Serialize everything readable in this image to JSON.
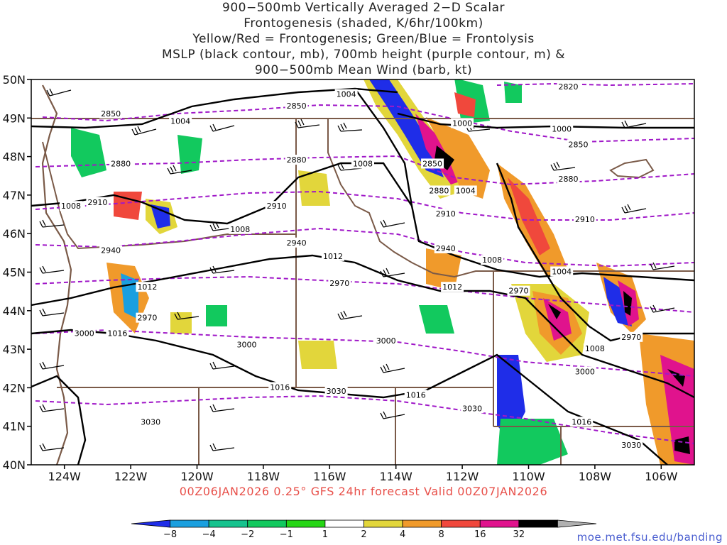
{
  "title_lines": [
    "900−500mb Vertically Averaged 2−D Scalar",
    "Frontogenesis (shaded, K/6hr/100km)",
    "Yellow/Red = Frontogenesis;  Green/Blue = Frontolysis",
    "MSLP (black contour, mb), 700mb height (purple contour, m) &",
    "900−500mb Mean Wind (barb, kt)"
  ],
  "footer": "00Z06JAN2026 0.25° GFS 24hr forecast Valid 00Z07JAN2026",
  "credit": "moe.met.fsu.edu/banding",
  "axes": {
    "lat_labels": [
      "50N",
      "49N",
      "48N",
      "47N",
      "46N",
      "45N",
      "44N",
      "43N",
      "42N",
      "41N",
      "40N"
    ],
    "lon_labels": [
      "124W",
      "122W",
      "120W",
      "118W",
      "116W",
      "114W",
      "112W",
      "110W",
      "108W",
      "106W"
    ]
  },
  "colorbar": {
    "labels": [
      "−8",
      "−4",
      "−2",
      "−1",
      "1",
      "2",
      "4",
      "8",
      "16",
      "32"
    ],
    "colors": [
      "#1f2de8",
      "#1a9fdf",
      "#16c38e",
      "#12c95e",
      "#26d615",
      "#ffffff",
      "#e2d63b",
      "#f09a2b",
      "#f0483c",
      "#e0138d",
      "#000000",
      "#b0b0b0"
    ]
  },
  "mslp_labels": [
    {
      "text": "1004",
      "lon": -115.5,
      "lat": 49.6
    },
    {
      "text": "1004",
      "lon": -120.5,
      "lat": 48.9
    },
    {
      "text": "1000",
      "lon": -112.0,
      "lat": 48.85
    },
    {
      "text": "1000",
      "lon": -109.0,
      "lat": 48.7
    },
    {
      "text": "1008",
      "lon": -115.0,
      "lat": 47.8
    },
    {
      "text": "1004",
      "lon": -111.9,
      "lat": 47.1
    },
    {
      "text": "1008",
      "lon": -123.8,
      "lat": 46.7
    },
    {
      "text": "1008",
      "lon": -118.7,
      "lat": 46.1
    },
    {
      "text": "1008",
      "lon": -111.1,
      "lat": 45.3
    },
    {
      "text": "1004",
      "lon": -109.0,
      "lat": 45.0
    },
    {
      "text": "1012",
      "lon": -115.9,
      "lat": 45.4
    },
    {
      "text": "1012",
      "lon": -112.3,
      "lat": 44.6
    },
    {
      "text": "1012",
      "lon": -121.5,
      "lat": 44.6
    },
    {
      "text": "1016",
      "lon": -122.4,
      "lat": 43.4
    },
    {
      "text": "1008",
      "lon": -108.0,
      "lat": 43.0
    },
    {
      "text": "1016",
      "lon": -117.5,
      "lat": 42.0
    },
    {
      "text": "1016",
      "lon": -113.4,
      "lat": 41.8
    },
    {
      "text": "1016",
      "lon": -108.4,
      "lat": 41.1
    }
  ],
  "height_labels": [
    {
      "text": "2820",
      "lon": -108.8,
      "lat": 49.8
    },
    {
      "text": "2850",
      "lon": -122.6,
      "lat": 49.1
    },
    {
      "text": "2850",
      "lon": -117.0,
      "lat": 49.3
    },
    {
      "text": "2850",
      "lon": -112.9,
      "lat": 47.8
    },
    {
      "text": "2850",
      "lon": -108.5,
      "lat": 48.3
    },
    {
      "text": "2880",
      "lon": -122.3,
      "lat": 47.8
    },
    {
      "text": "2880",
      "lon": -117.0,
      "lat": 47.9
    },
    {
      "text": "2880",
      "lon": -112.7,
      "lat": 47.1
    },
    {
      "text": "2880",
      "lon": -108.8,
      "lat": 47.4
    },
    {
      "text": "2910",
      "lon": -123.0,
      "lat": 46.8
    },
    {
      "text": "2910",
      "lon": -117.6,
      "lat": 46.7
    },
    {
      "text": "2910",
      "lon": -112.5,
      "lat": 46.5
    },
    {
      "text": "2910",
      "lon": -108.3,
      "lat": 46.35
    },
    {
      "text": "2940",
      "lon": -122.6,
      "lat": 45.55
    },
    {
      "text": "2940",
      "lon": -117.0,
      "lat": 45.75
    },
    {
      "text": "2940",
      "lon": -112.5,
      "lat": 45.6
    },
    {
      "text": "2970",
      "lon": -115.7,
      "lat": 44.7
    },
    {
      "text": "2970",
      "lon": -110.3,
      "lat": 44.5
    },
    {
      "text": "2970",
      "lon": -121.5,
      "lat": 43.8
    },
    {
      "text": "2970",
      "lon": -106.9,
      "lat": 43.3
    },
    {
      "text": "3000",
      "lon": -123.4,
      "lat": 43.4
    },
    {
      "text": "3000",
      "lon": -118.5,
      "lat": 43.1
    },
    {
      "text": "3000",
      "lon": -114.3,
      "lat": 43.2
    },
    {
      "text": "3000",
      "lon": -108.3,
      "lat": 42.4
    },
    {
      "text": "3030",
      "lon": -115.8,
      "lat": 41.9
    },
    {
      "text": "3030",
      "lon": -121.4,
      "lat": 41.1
    },
    {
      "text": "3030",
      "lon": -111.7,
      "lat": 41.45
    },
    {
      "text": "3030",
      "lon": -106.9,
      "lat": 40.5
    }
  ]
}
